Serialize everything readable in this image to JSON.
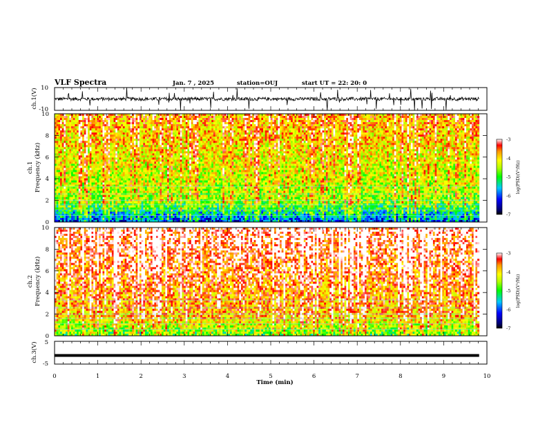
{
  "header": {
    "title": "VLF Spectra",
    "date": "Jan. 7 , 2025",
    "station": "station=OUJ",
    "start": "start UT =  22: 20: 0"
  },
  "chart_data": [
    {
      "type": "line",
      "panel": "ch1-waveform",
      "ylabel": "ch.1(V)",
      "yticks": [
        "10",
        "-10"
      ],
      "ylim": [
        -10,
        10
      ],
      "xlim": [
        0,
        10
      ],
      "baseline": 0,
      "noise_amplitude": 1.5,
      "spikes_up_to": 10,
      "data_end_min": 9.82
    },
    {
      "type": "heatmap",
      "panel": "ch1-spectrogram",
      "ylabel": "ch.1\nFrequency (kHz)",
      "yticks": [
        "0",
        "2",
        "4",
        "6",
        "8",
        "10"
      ],
      "ylim": [
        0,
        10
      ],
      "xlim": [
        0,
        10
      ],
      "data_end_min": 9.82,
      "colorbar": {
        "label": "log(PSD)(V²/Hz)",
        "ticks": [
          "-3",
          "-4",
          "-5",
          "-6",
          "-7"
        ],
        "range": [
          -7,
          -3
        ]
      }
    },
    {
      "type": "heatmap",
      "panel": "ch2-spectrogram",
      "ylabel": "ch.2\nFrequency (kHz)",
      "yticks": [
        "0",
        "2",
        "4",
        "6",
        "8",
        "10"
      ],
      "ylim": [
        0,
        10
      ],
      "xlim": [
        0,
        10
      ],
      "data_end_min": 9.82,
      "colorbar": {
        "label": "log(PSD)(V²/Hz)",
        "ticks": [
          "-3",
          "-4",
          "-5",
          "-6",
          "-7"
        ],
        "range": [
          -7,
          -3
        ]
      }
    },
    {
      "type": "line",
      "panel": "ch3-waveform",
      "ylabel": "ch.3(V)",
      "yticks": [
        "5",
        "-5"
      ],
      "ylim": [
        -5,
        5
      ],
      "xlim": [
        0,
        10
      ],
      "baseline": -1.2,
      "data_end_min": 9.82,
      "xlabel": "Time (min)",
      "xticks": [
        "0",
        "1",
        "2",
        "3",
        "4",
        "5",
        "6",
        "7",
        "8",
        "9",
        "10"
      ]
    }
  ]
}
